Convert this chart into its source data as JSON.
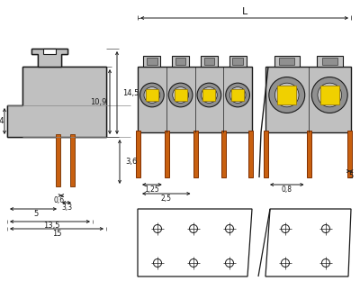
{
  "bg_color": "#ffffff",
  "line_color": "#1a1a1a",
  "gray_fill": "#c0c0c0",
  "gray_dark": "#909090",
  "orange_color": "#c86010",
  "yellow_color": "#f0d000",
  "dim_color": "#1a1a1a",
  "fig_width": 4.0,
  "fig_height": 3.22
}
